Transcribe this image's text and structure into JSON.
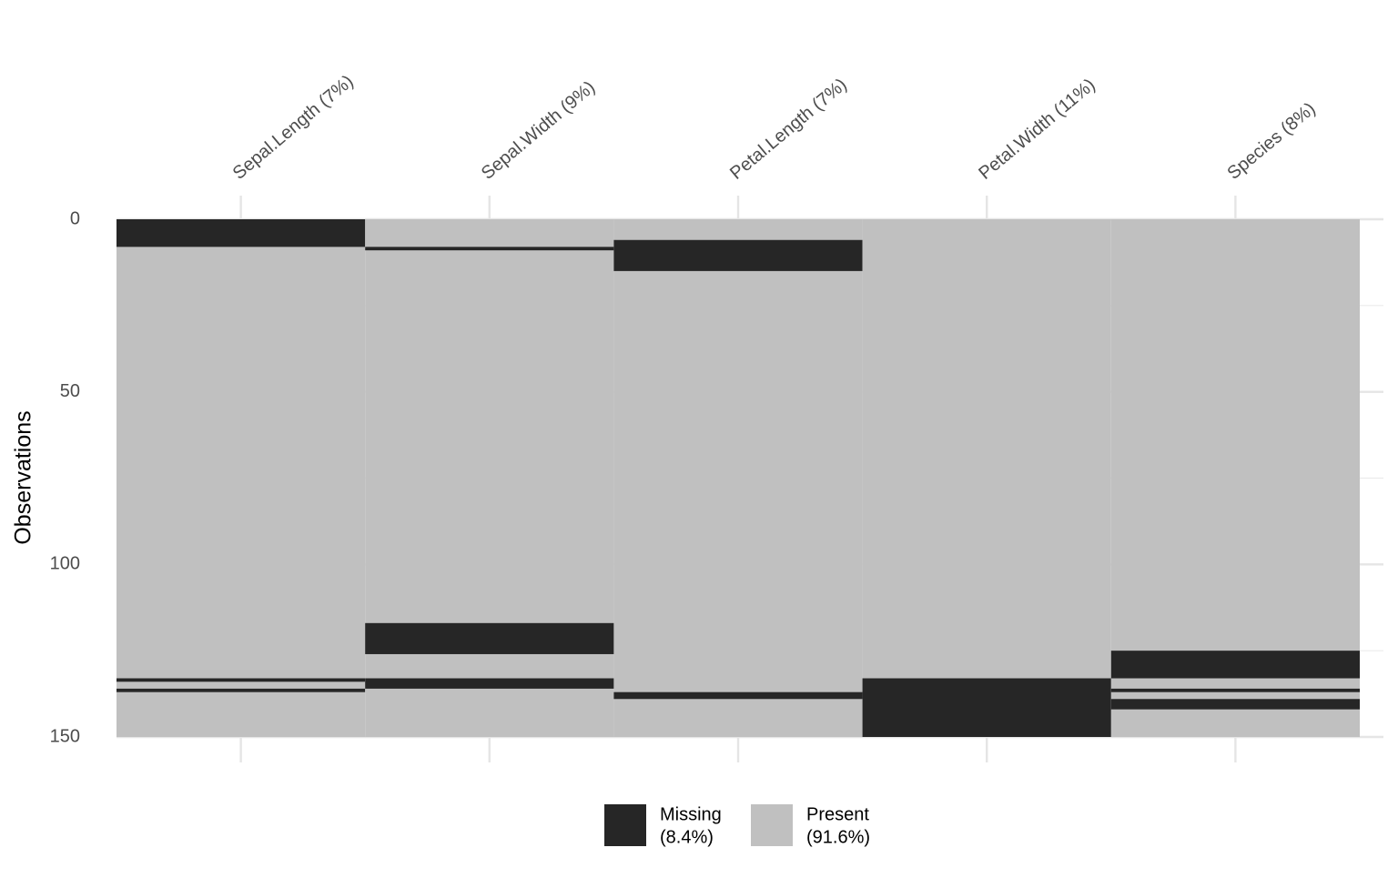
{
  "chart_data": {
    "type": "missingness",
    "y_title": "Observations",
    "ylim": [
      0,
      150
    ],
    "yticks": [
      0,
      50,
      100,
      150
    ],
    "y_minor_grid": [
      25,
      75,
      125
    ],
    "y_reversed": true,
    "grid": true,
    "present_color": "#c0c0c0",
    "missing_color": "#262626",
    "series": [
      {
        "name": "Sepal.Length (7%)",
        "missing": [
          [
            0,
            8
          ],
          [
            133,
            134
          ],
          [
            136,
            137
          ]
        ]
      },
      {
        "name": "Sepal.Width (9%)",
        "missing": [
          [
            8,
            9
          ],
          [
            117,
            126
          ],
          [
            133,
            136
          ]
        ]
      },
      {
        "name": "Petal.Length (7%)",
        "missing": [
          [
            6,
            15
          ],
          [
            137,
            139
          ]
        ]
      },
      {
        "name": "Petal.Width (11%)",
        "missing": [
          [
            133,
            150
          ]
        ]
      },
      {
        "name": "Species (8%)",
        "missing": [
          [
            125,
            133
          ],
          [
            136,
            137
          ],
          [
            139,
            142
          ]
        ]
      }
    ],
    "legend": [
      {
        "name": "Missing",
        "value": 8.4,
        "value_label": "(8.4%)",
        "color": "#262626"
      },
      {
        "name": "Present",
        "value": 91.6,
        "value_label": "(91.6%)",
        "color": "#c0c0c0"
      }
    ],
    "legend_position": "bottom"
  }
}
